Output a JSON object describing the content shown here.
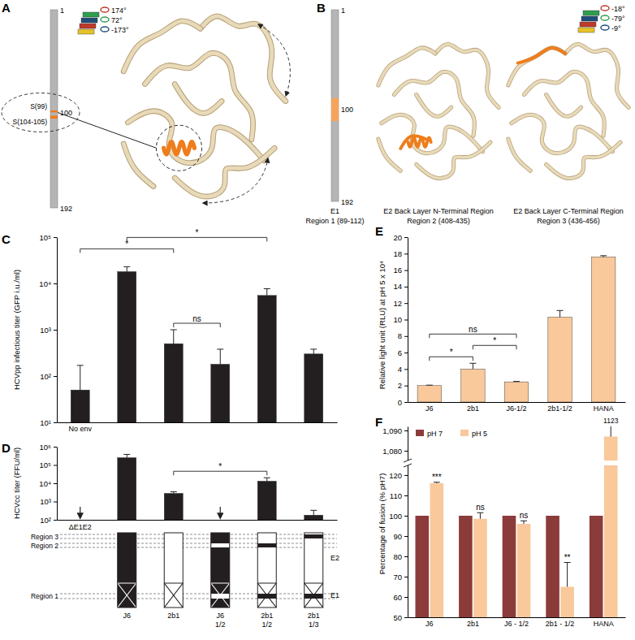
{
  "panels": [
    {
      "label": "A",
      "sequence": {
        "start": 1,
        "mid": 100,
        "end": 192
      },
      "sites": [
        {
          "label": "S(99)",
          "start": 99,
          "end": 99
        },
        {
          "label": "S(104-105)",
          "start": 104,
          "end": 105
        }
      ],
      "rotation": [
        "174°",
        "72°",
        "-173°"
      ]
    },
    {
      "label": "B",
      "sequence": {
        "start": 1,
        "mid": 100,
        "end": 192
      },
      "highlight": {
        "start": 89,
        "end": 112
      },
      "captions": [
        {
          "lines": [
            "E1",
            "Region 1 (89-112)"
          ]
        },
        {
          "lines": [
            "E2 Back Layer N-Terminal Region",
            "Region 2 (408-435)"
          ]
        },
        {
          "lines": [
            "E2 Back Layer C-Terminal Region",
            "Region 3 (436-456)"
          ]
        }
      ],
      "rotation": [
        "-18°",
        "-79°",
        "-9°"
      ]
    }
  ],
  "chart_data": [
    {
      "panel": "C",
      "type": "bar",
      "log": "y",
      "categories": [
        "No env",
        null,
        null,
        null,
        null,
        null
      ],
      "values": [
        50,
        18000,
        500,
        180,
        5500,
        300
      ],
      "errors": [
        120,
        5000,
        500,
        200,
        2200,
        80
      ],
      "color": "#231f20",
      "ylabel": "HCVpp infectious titer (GFP i.u./ml)",
      "ylim": [
        10,
        100000
      ],
      "yticks": [
        {
          "value": 10,
          "label": "10¹"
        },
        {
          "value": 100,
          "label": "10²"
        },
        {
          "value": 1000,
          "label": "10³"
        },
        {
          "value": 10000,
          "label": "10⁴"
        },
        {
          "value": 100000,
          "label": "10⁵"
        }
      ],
      "comparisons": [
        {
          "between": [
            2,
            3
          ],
          "label": "ns"
        },
        {
          "between": [
            0,
            2
          ],
          "label": "*"
        },
        {
          "between": [
            1,
            4
          ],
          "label": "*"
        }
      ]
    },
    {
      "panel": "D",
      "type": "bar",
      "log": "y",
      "categories": [
        "ΔE1E2",
        "J6",
        "2b1",
        "J6 1/2",
        "2b1 1/2",
        "2b1 1/3"
      ],
      "values": [
        null,
        250000,
        2800,
        null,
        13000,
        180
      ],
      "errors": [
        null,
        130000,
        600,
        null,
        7000,
        150
      ],
      "color": "#231f20",
      "ylabel": "HCVcc titer (FFU/ml)",
      "ylim": [
        100,
        1000000
      ],
      "yticks": [
        {
          "value": 100,
          "label": "10²"
        },
        {
          "value": 1000,
          "label": "10³"
        },
        {
          "value": 10000,
          "label": "10⁴"
        },
        {
          "value": 100000,
          "label": "10⁵"
        },
        {
          "value": 1000000,
          "label": "10⁶"
        }
      ],
      "comparisons": [
        {
          "between": [
            2,
            4
          ],
          "label": "*"
        }
      ],
      "domains": [
        "E2",
        "E1"
      ],
      "regions": [
        "Region 3",
        "Region 2",
        "Region 1"
      ],
      "constructs": [
        null,
        {
          "color": "#231f20",
          "swap_color": "#ffffff",
          "swapped": []
        },
        {
          "color": "#ffffff",
          "swap_color": "#231f20",
          "swapped": []
        },
        {
          "color": "#231f20",
          "swap_color": "#ffffff",
          "swapped": [
            "Region 1",
            "Region 2"
          ]
        },
        {
          "color": "#ffffff",
          "swap_color": "#231f20",
          "swapped": [
            "Region 1",
            "Region 2"
          ]
        },
        {
          "color": "#ffffff",
          "swap_color": "#231f20",
          "swapped": [
            "Region 1",
            "Region 3"
          ]
        }
      ]
    },
    {
      "panel": "E",
      "type": "bar",
      "categories": [
        "J6",
        "2b1",
        "J6-1/2",
        "2b1-1/2",
        "HANA"
      ],
      "values": [
        2.0,
        4.0,
        2.45,
        10.3,
        17.6
      ],
      "errors": [
        0.05,
        0.7,
        0.05,
        0.8,
        0.15
      ],
      "color": "#f9c89b",
      "ylabel": "Relative light unit (RLU) at pH 5 x 10⁴",
      "ylim": [
        0,
        20
      ],
      "yticks": [
        0,
        2,
        4,
        6,
        8,
        10,
        12,
        14,
        16,
        18,
        20
      ],
      "comparisons": [
        {
          "between": [
            0,
            1
          ],
          "label": "*"
        },
        {
          "between": [
            1,
            2
          ],
          "label": "*"
        },
        {
          "between": [
            0,
            2
          ],
          "label": "ns"
        }
      ]
    },
    {
      "panel": "F",
      "type": "bar",
      "categories": [
        "J6",
        "2b1",
        "J6 - 1/2",
        "2b1 - 1/2",
        "HANA"
      ],
      "series": [
        {
          "name": "pH 7",
          "color": "#8c3b3b",
          "values": [
            100,
            100,
            100,
            100,
            100
          ]
        },
        {
          "name": "pH 5",
          "color": "#f9c89b",
          "values": [
            116,
            98.5,
            96,
            65,
            1087
          ],
          "errors": [
            0.5,
            3,
            1.5,
            12,
            36
          ],
          "significance": [
            "***",
            "ns",
            "ns",
            "**",
            null
          ]
        }
      ],
      "ylabel": "Percentage of fusion (% pH7)",
      "ylim": [
        50,
        1092
      ],
      "ybreak": [
        120,
        1080
      ],
      "yticks": [
        50,
        60,
        70,
        80,
        90,
        100,
        110,
        120,
        {
          "value": 1080,
          "label": "1,080"
        },
        {
          "value": 1090,
          "label": "1,090"
        }
      ],
      "legend": "top-left",
      "annotations": [
        {
          "category": 4,
          "text": "1123"
        }
      ]
    }
  ]
}
